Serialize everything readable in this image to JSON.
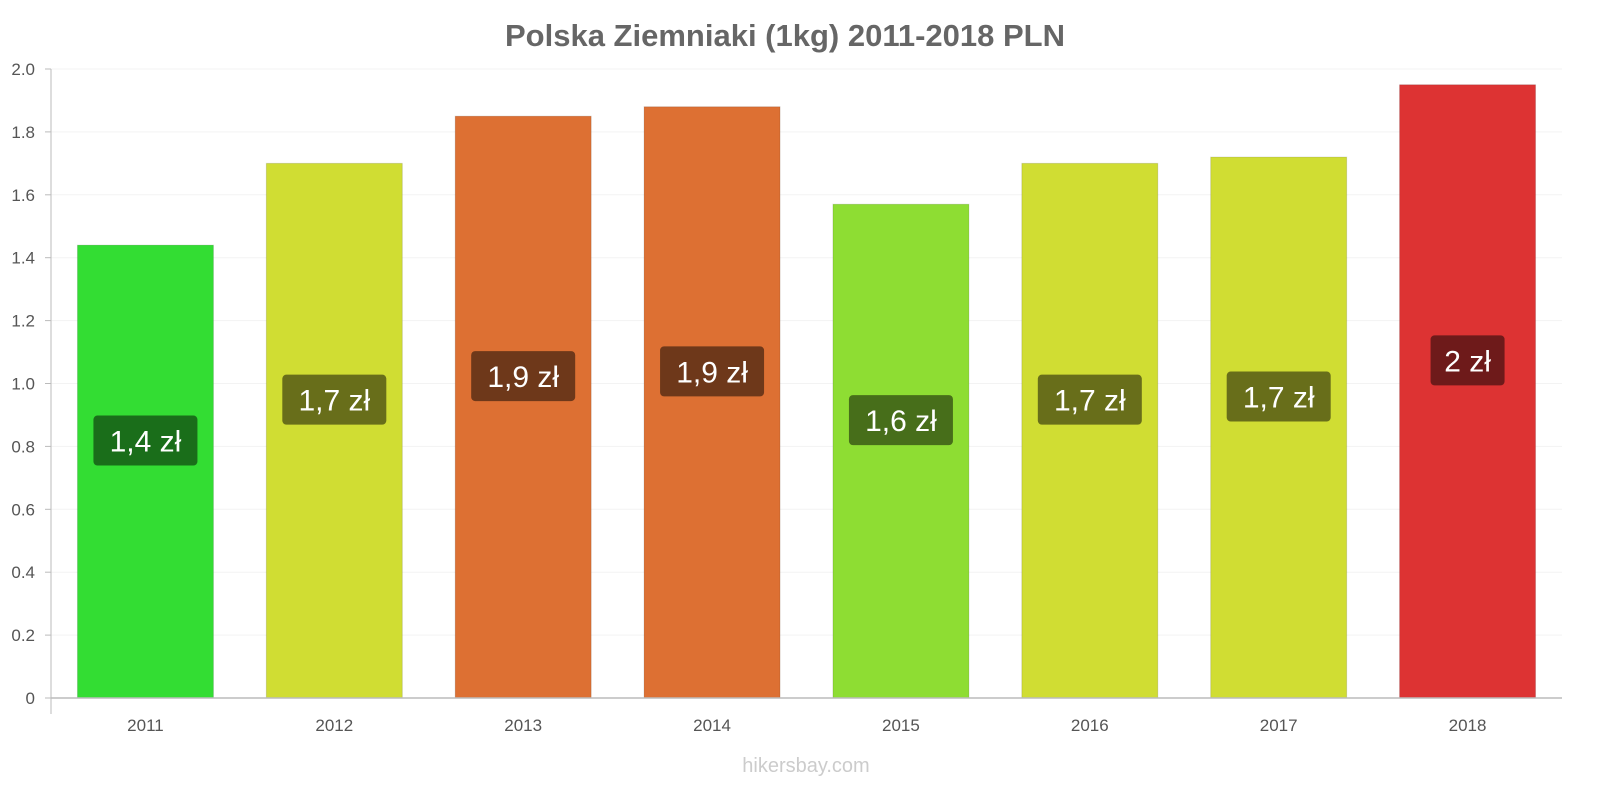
{
  "chart_data": {
    "type": "bar",
    "title": "Polska Ziemniaki (1kg) 2011-2018 PLN",
    "xlabel": "",
    "ylabel": "",
    "ylim": [
      0,
      2.0
    ],
    "yticks": [
      "0",
      "0.2",
      "0.4",
      "0.6",
      "0.8",
      "1.0",
      "1.2",
      "1.4",
      "1.6",
      "1.8",
      "2.0"
    ],
    "grid": true,
    "categories": [
      "2011",
      "2012",
      "2013",
      "2014",
      "2015",
      "2016",
      "2017",
      "2018"
    ],
    "values": [
      1.44,
      1.7,
      1.85,
      1.88,
      1.57,
      1.7,
      1.72,
      1.95
    ],
    "data_labels": [
      "1,4 zł",
      "1,7 zł",
      "1,9 zł",
      "1,9 zł",
      "1,6 zł",
      "1,7 zł",
      "1,7 zł",
      "2 zł"
    ],
    "bar_colors": [
      "#33dd33",
      "#d0dd33",
      "#dd7033",
      "#dd7033",
      "#8edd33",
      "#d0dd33",
      "#d0dd33",
      "#dd3333"
    ],
    "label_colors": [
      "#1a6e1a",
      "#686e1a",
      "#6e381a",
      "#6e381a",
      "#476e1a",
      "#686e1a",
      "#686e1a",
      "#6e1a1a"
    ]
  },
  "watermark": "hikersbay.com"
}
